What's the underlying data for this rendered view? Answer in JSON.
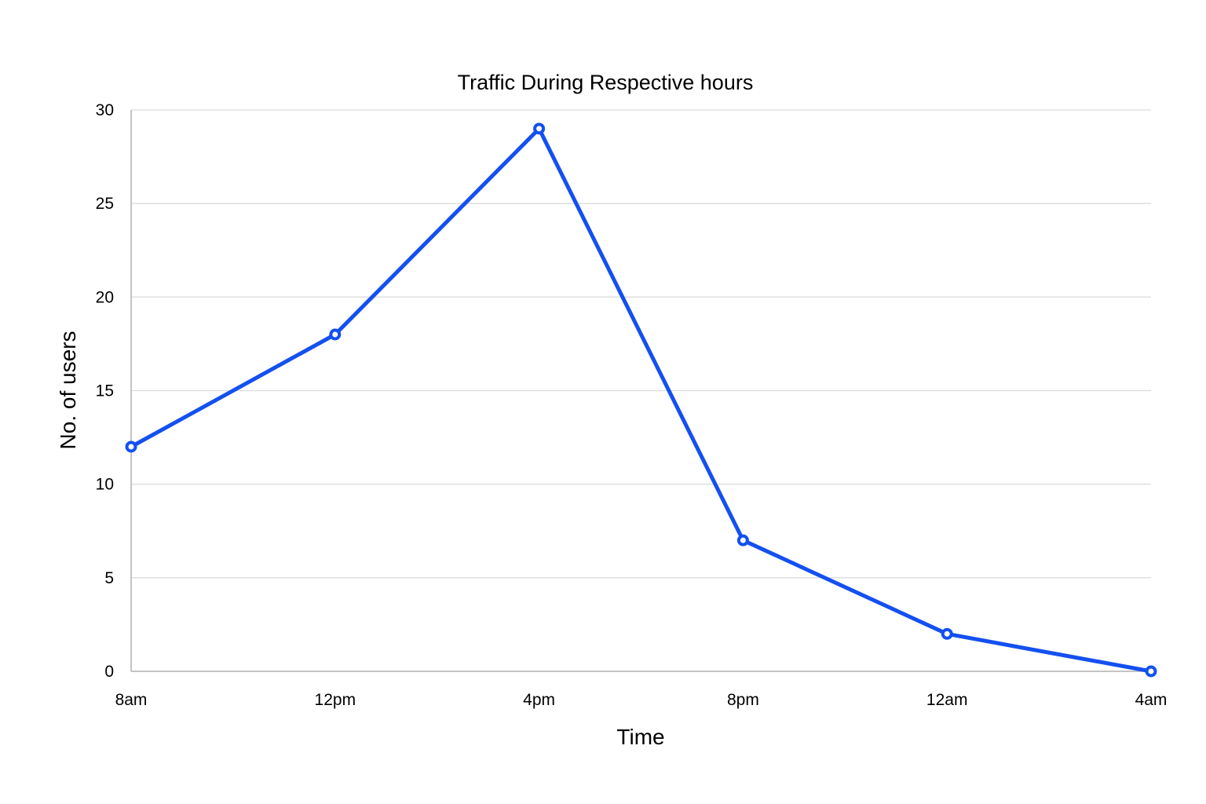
{
  "chart_data": {
    "type": "line",
    "title": "Traffic During Respective hours",
    "xlabel": "Time",
    "ylabel": "No. of users",
    "categories": [
      "8am",
      "12pm",
      "4pm",
      "8pm",
      "12am",
      "4am"
    ],
    "series": [
      {
        "values": [
          12,
          18,
          29,
          7,
          2,
          0
        ],
        "color": "#1450f0"
      }
    ],
    "ylim": [
      0,
      30
    ],
    "yticks": [
      0,
      5,
      10,
      15,
      20,
      25,
      30
    ],
    "grid": true,
    "legend": "none"
  }
}
